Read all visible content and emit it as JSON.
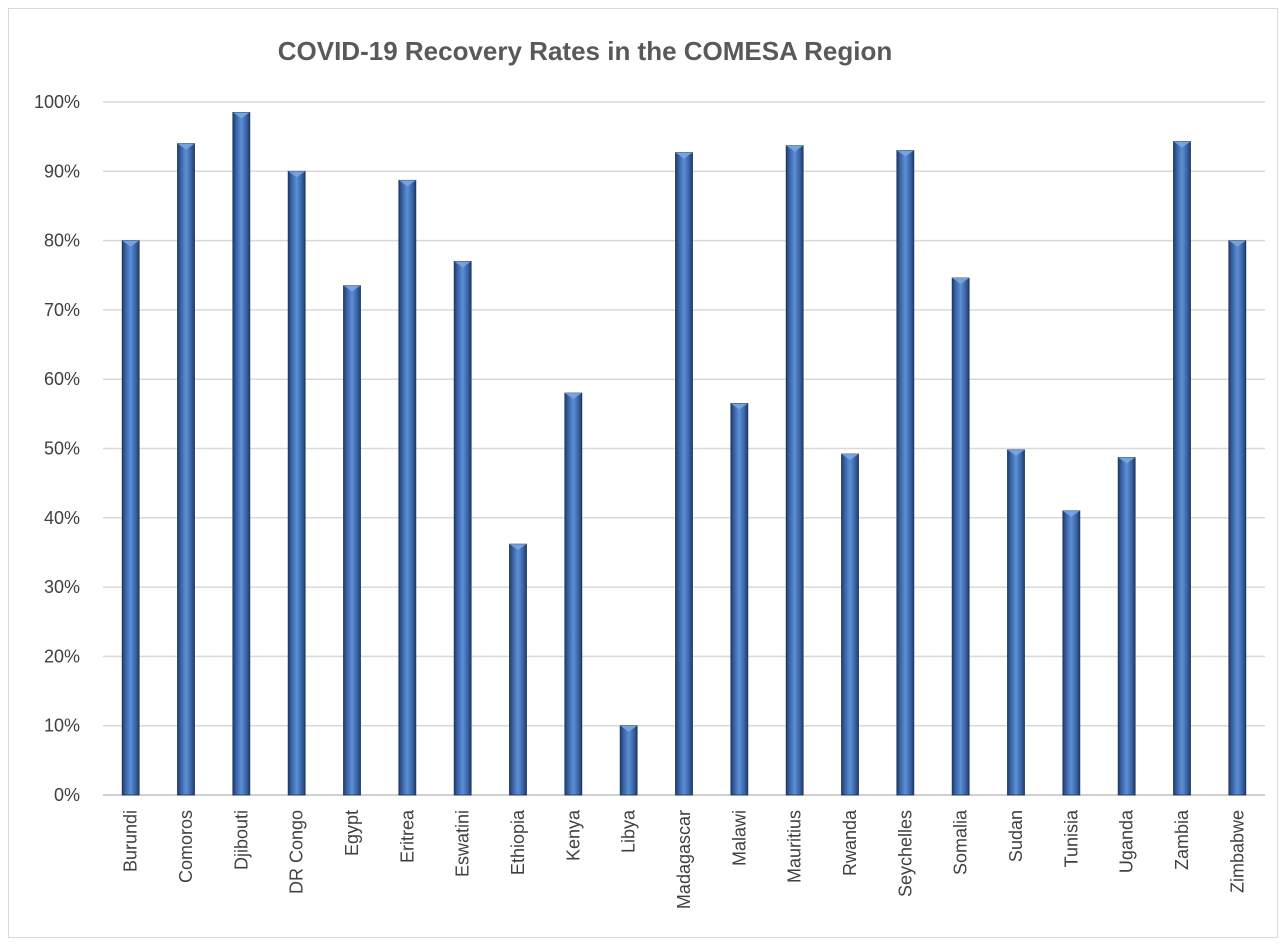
{
  "chart_data": {
    "type": "bar",
    "title": "COVID-19 Recovery Rates in the COMESA Region",
    "xlabel": "",
    "ylabel": "",
    "ylim": [
      0,
      1
    ],
    "y_ticks": [
      0,
      0.1,
      0.2,
      0.3,
      0.4,
      0.5,
      0.6,
      0.7,
      0.8,
      0.9,
      1.0
    ],
    "y_tick_labels": [
      "0%",
      "10%",
      "20%",
      "30%",
      "40%",
      "50%",
      "60%",
      "70%",
      "80%",
      "90%",
      "100%"
    ],
    "grid": true,
    "legend": "none",
    "bar_color": "#4a76b8",
    "categories": [
      "Burundi",
      "Comoros",
      "Djibouti",
      "DR Congo",
      "Egypt",
      "Eritrea",
      "Eswatini",
      "Ethiopia",
      "Kenya",
      "Libya",
      "Madagascar",
      "Malawi",
      "Mauritius",
      "Rwanda",
      "Seychelles",
      "Somalia",
      "Sudan",
      "Tunisia",
      "Uganda",
      "Zambia",
      "Zimbabwe"
    ],
    "values": [
      0.8,
      0.94,
      0.985,
      0.9,
      0.735,
      0.887,
      0.77,
      0.362,
      0.58,
      0.1,
      0.927,
      0.565,
      0.937,
      0.492,
      0.93,
      0.746,
      0.498,
      0.41,
      0.487,
      0.943,
      0.8
    ]
  }
}
